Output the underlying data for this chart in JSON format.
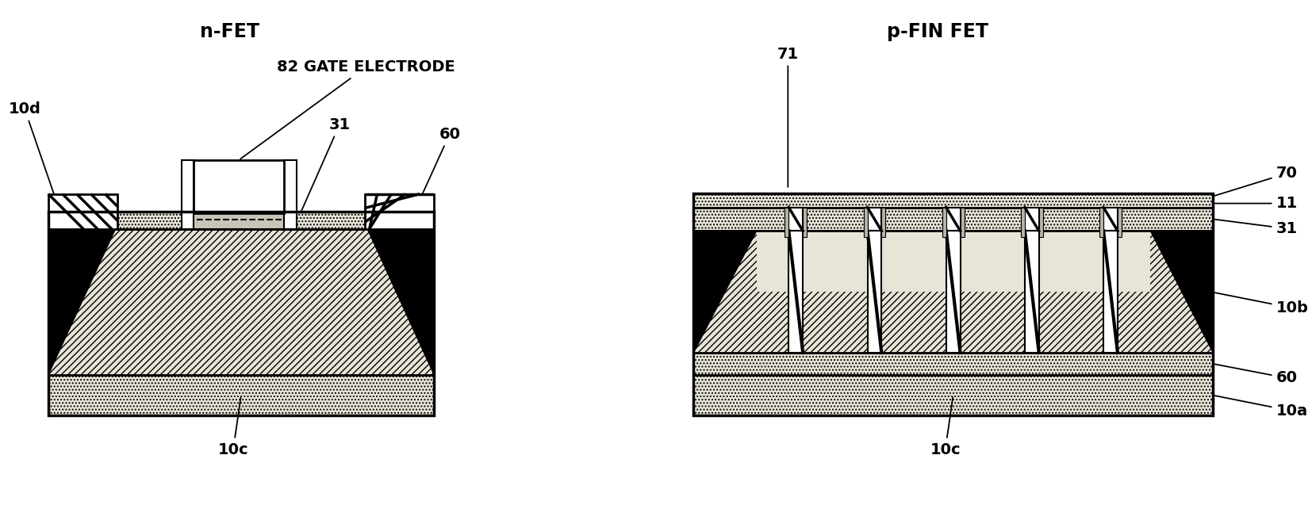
{
  "bg_color": "#ffffff",
  "fig_width": 16.54,
  "fig_height": 6.56,
  "labels": {
    "nfet_title": "n-FET",
    "pfin_title": "p-FIN FET",
    "10d": "10d",
    "82": "82 GATE ELECTRODE",
    "31": "31",
    "60": "60",
    "10c": "10c",
    "71": "71",
    "70": "70",
    "11": "11",
    "31p": "31",
    "10b": "10b",
    "60p": "60",
    "10a": "10a",
    "10cp": "10c"
  },
  "colors": {
    "dot_fill": "#e8e4d8",
    "diag_fill": "#e8e4d8",
    "white": "#ffffff",
    "black": "#000000",
    "gate_top": "#d0ccc0",
    "light_gray": "#d8d4c8"
  }
}
